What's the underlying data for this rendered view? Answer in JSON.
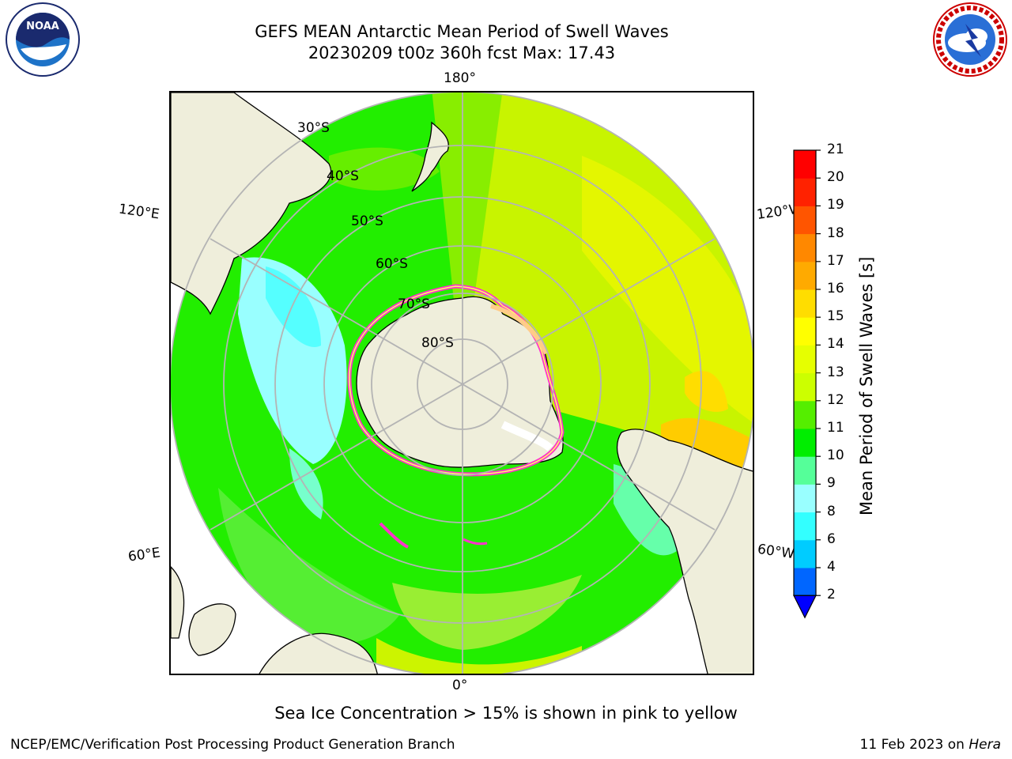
{
  "title": {
    "line1": "GEFS MEAN Antarctic Mean Period of Swell Waves",
    "line2": "20230209 t00z 360h fcst   Max: 17.43"
  },
  "logos": {
    "left": "noaa-logo",
    "right": "national-weather-service-logo"
  },
  "map": {
    "projection": "south-polar-stereographic",
    "longitude_labels": {
      "top": "180°",
      "bottom": "0°",
      "upper_left": "120°E",
      "upper_right": "120°W",
      "lower_left": "60°E",
      "lower_right": "60°W"
    },
    "latitude_labels": [
      "30°S",
      "40°S",
      "50°S",
      "60°S",
      "70°S",
      "80°S"
    ],
    "land_color": "#efeedb",
    "ice_edge_colors": [
      "#ff33cc",
      "#ffff66"
    ]
  },
  "colorbar": {
    "label": "Mean Period of Swell Waves [s]",
    "ticks": [
      "2",
      "4",
      "6",
      "8",
      "9",
      "10",
      "11",
      "12",
      "13",
      "14",
      "15",
      "16",
      "17",
      "18",
      "19",
      "20",
      "21"
    ],
    "colors": [
      "#0066ff",
      "#00ccff",
      "#33ffff",
      "#99ffff",
      "#55ff99",
      "#00ee00",
      "#55ee00",
      "#ccff00",
      "#e6ff00",
      "#ffff00",
      "#ffdd00",
      "#ffaa00",
      "#ff8800",
      "#ff5500",
      "#ff2200",
      "#ff0000"
    ],
    "under_color": "#0000ff"
  },
  "footer": {
    "note": "Sea Ice Concentration > 15% is shown in pink to yellow",
    "left": "NCEP/EMC/Verification Post Processing Product Generation Branch",
    "right_date": "11 Feb 2023 on ",
    "right_host": "Hera"
  }
}
